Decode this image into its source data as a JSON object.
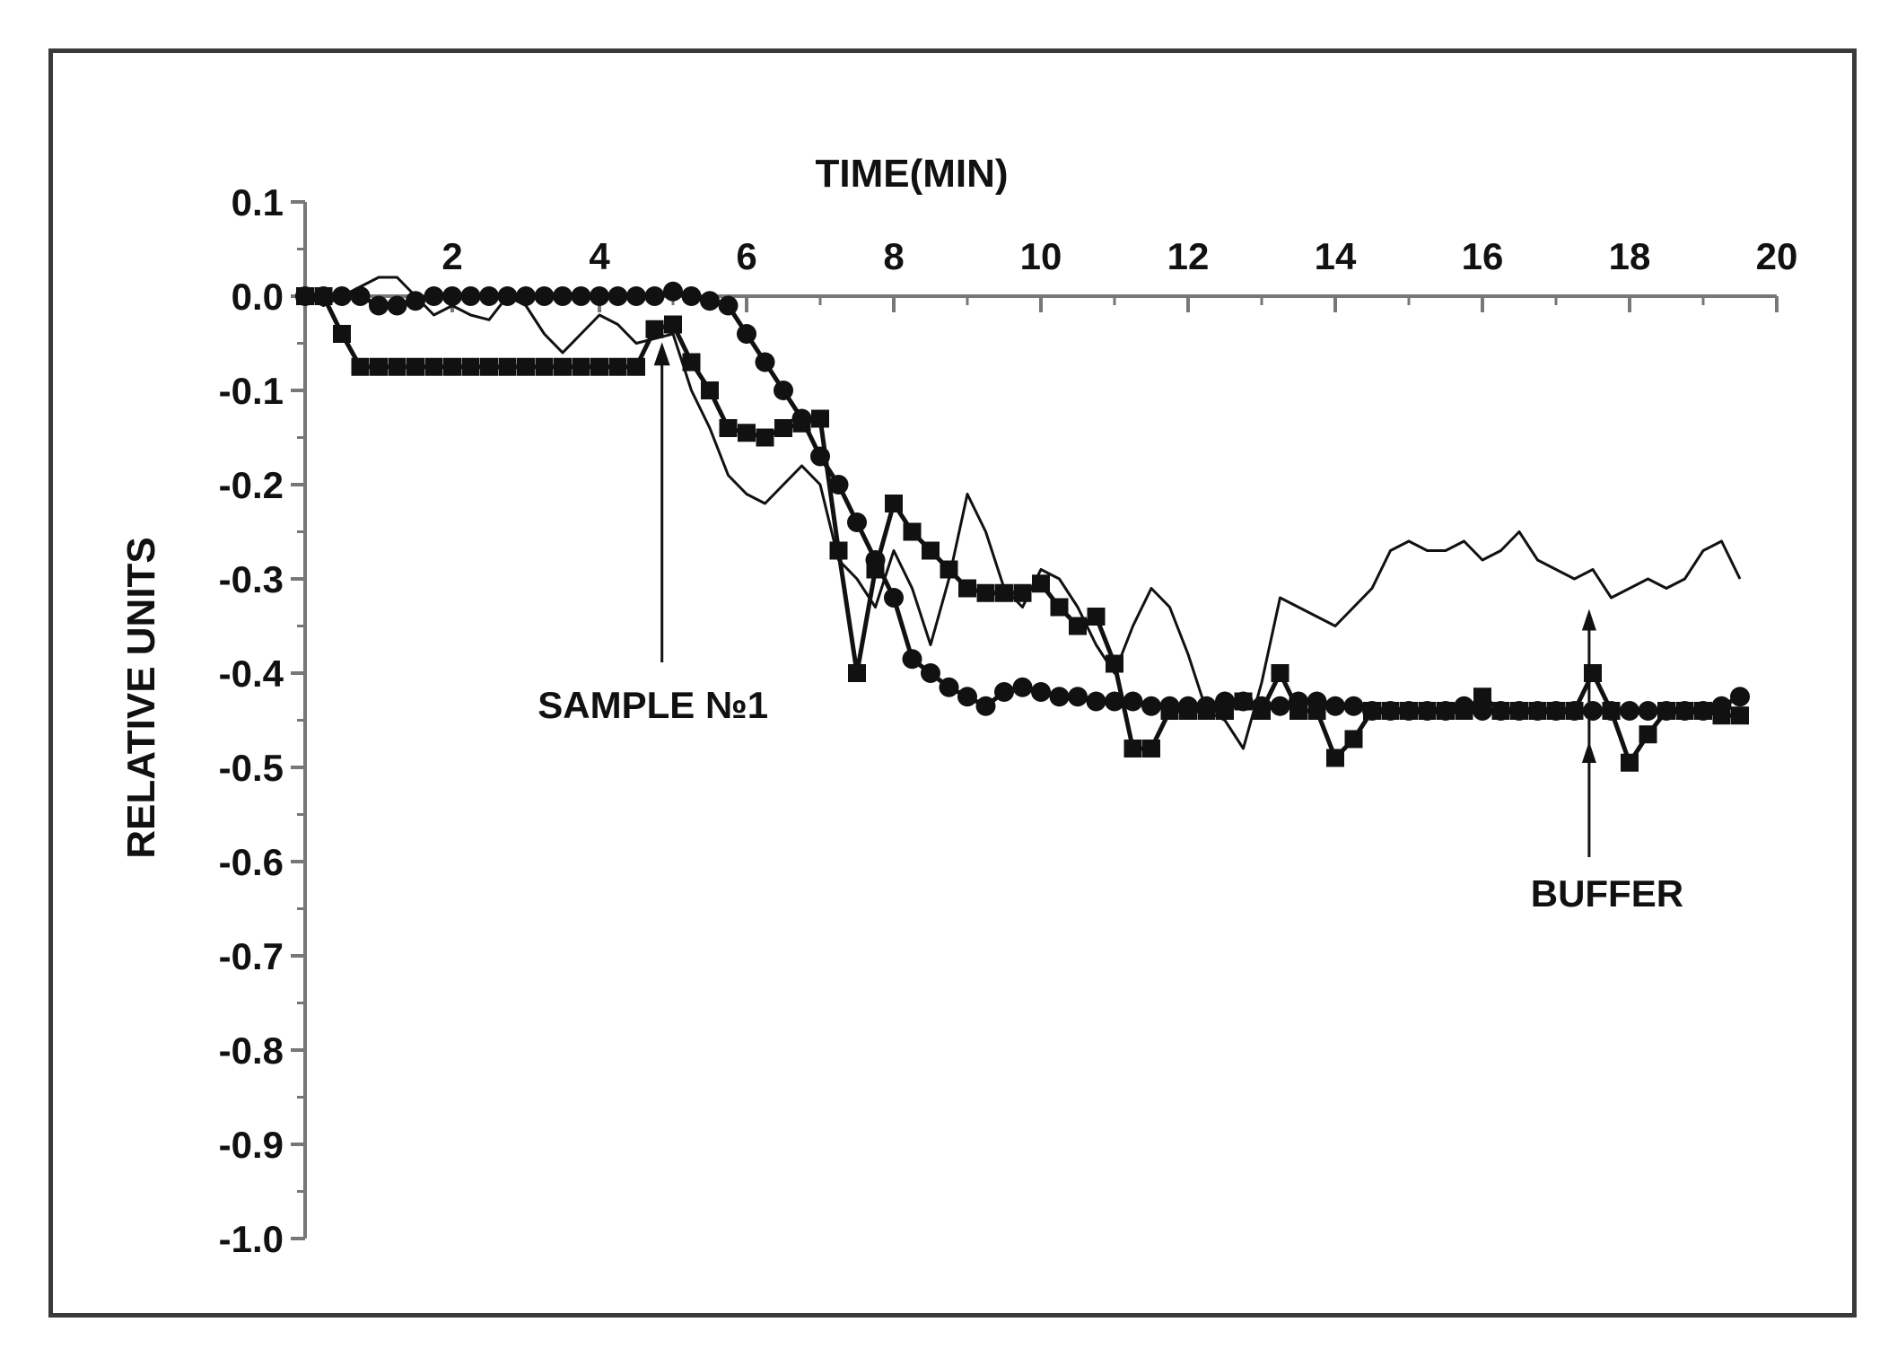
{
  "chart_data": {
    "type": "line",
    "xlabel": "TIME(MIN)",
    "ylabel": "RELATIVE UNITS",
    "xlim": [
      0,
      20
    ],
    "ylim": [
      -1.0,
      0.1
    ],
    "x_axis_position": "top",
    "x_ticks": [
      2,
      4,
      6,
      8,
      10,
      12,
      14,
      16,
      18,
      20
    ],
    "x_tick_labels": [
      "2",
      "4",
      "6",
      "8",
      "10",
      "12",
      "14",
      "16",
      "18",
      "20"
    ],
    "y_ticks": [
      0.1,
      0.0,
      -0.1,
      -0.2,
      -0.3,
      -0.4,
      -0.5,
      -0.6,
      -0.7,
      -0.8,
      -0.9,
      -1.0
    ],
    "y_tick_labels": [
      "0.1",
      "0.0",
      "-0.1",
      "-0.2",
      "-0.3",
      "-0.4",
      "-0.5",
      "-0.6",
      "-0.7",
      "-0.8",
      "-0.9",
      "-1.0"
    ],
    "grid": false,
    "legend": "none",
    "series": [
      {
        "marker": "circle",
        "x": [
          0,
          0.25,
          0.5,
          0.75,
          1,
          1.25,
          1.5,
          1.75,
          2,
          2.25,
          2.5,
          2.75,
          3,
          3.25,
          3.5,
          3.75,
          4,
          4.25,
          4.5,
          4.75,
          5,
          5.25,
          5.5,
          5.75,
          6,
          6.25,
          6.5,
          6.75,
          7,
          7.25,
          7.5,
          7.75,
          8,
          8.25,
          8.5,
          8.75,
          9,
          9.25,
          9.5,
          9.75,
          10,
          10.25,
          10.5,
          10.75,
          11,
          11.25,
          11.5,
          11.75,
          12,
          12.25,
          12.5,
          12.75,
          13,
          13.25,
          13.5,
          13.75,
          14,
          14.25,
          14.5,
          14.75,
          15,
          15.25,
          15.5,
          15.75,
          16,
          16.25,
          16.5,
          16.75,
          17,
          17.25,
          17.5,
          17.75,
          18,
          18.25,
          18.5,
          18.75,
          19,
          19.25,
          19.5
        ],
        "y": [
          0.0,
          0.0,
          0.0,
          0.0,
          -0.01,
          -0.01,
          -0.005,
          0.0,
          0.0,
          0.0,
          0.0,
          0.0,
          0.0,
          0.0,
          0.0,
          0.0,
          0.0,
          0.0,
          0.0,
          0.0,
          0.005,
          0.0,
          -0.005,
          -0.01,
          -0.04,
          -0.07,
          -0.1,
          -0.13,
          -0.17,
          -0.2,
          -0.24,
          -0.28,
          -0.32,
          -0.385,
          -0.4,
          -0.415,
          -0.425,
          -0.435,
          -0.42,
          -0.415,
          -0.42,
          -0.425,
          -0.425,
          -0.43,
          -0.43,
          -0.43,
          -0.435,
          -0.435,
          -0.435,
          -0.435,
          -0.43,
          -0.43,
          -0.435,
          -0.435,
          -0.43,
          -0.43,
          -0.435,
          -0.435,
          -0.44,
          -0.44,
          -0.44,
          -0.44,
          -0.44,
          -0.435,
          -0.44,
          -0.44,
          -0.44,
          -0.44,
          -0.44,
          -0.44,
          -0.44,
          -0.44,
          -0.44,
          -0.44,
          -0.44,
          -0.44,
          -0.44,
          -0.435,
          -0.425
        ]
      },
      {
        "marker": "square",
        "x": [
          0,
          0.25,
          0.5,
          0.75,
          1,
          1.25,
          1.5,
          1.75,
          2,
          2.25,
          2.5,
          2.75,
          3,
          3.25,
          3.5,
          3.75,
          4,
          4.25,
          4.5,
          4.75,
          5,
          5.25,
          5.5,
          5.75,
          6,
          6.25,
          6.5,
          6.75,
          7,
          7.25,
          7.5,
          7.75,
          8,
          8.25,
          8.5,
          8.75,
          9,
          9.25,
          9.5,
          9.75,
          10,
          10.25,
          10.5,
          10.75,
          11,
          11.25,
          11.5,
          11.75,
          12,
          12.25,
          12.5,
          12.75,
          13,
          13.25,
          13.5,
          13.75,
          14,
          14.25,
          14.5,
          14.75,
          15,
          15.25,
          15.5,
          15.75,
          16,
          16.25,
          16.5,
          16.75,
          17,
          17.25,
          17.5,
          17.75,
          18,
          18.25,
          18.5,
          18.75,
          19,
          19.25,
          19.5
        ],
        "y": [
          0.0,
          0.0,
          -0.04,
          -0.075,
          -0.075,
          -0.075,
          -0.075,
          -0.075,
          -0.075,
          -0.075,
          -0.075,
          -0.075,
          -0.075,
          -0.075,
          -0.075,
          -0.075,
          -0.075,
          -0.075,
          -0.075,
          -0.035,
          -0.03,
          -0.07,
          -0.1,
          -0.14,
          -0.145,
          -0.15,
          -0.14,
          -0.135,
          -0.13,
          -0.27,
          -0.4,
          -0.29,
          -0.22,
          -0.25,
          -0.27,
          -0.29,
          -0.31,
          -0.315,
          -0.315,
          -0.315,
          -0.305,
          -0.33,
          -0.35,
          -0.34,
          -0.39,
          -0.48,
          -0.48,
          -0.44,
          -0.44,
          -0.44,
          -0.44,
          -0.43,
          -0.44,
          -0.4,
          -0.44,
          -0.44,
          -0.49,
          -0.47,
          -0.44,
          -0.44,
          -0.44,
          -0.44,
          -0.44,
          -0.44,
          -0.425,
          -0.44,
          -0.44,
          -0.44,
          -0.44,
          -0.44,
          -0.4,
          -0.44,
          -0.495,
          -0.465,
          -0.44,
          -0.44,
          -0.44,
          -0.445,
          -0.445
        ]
      },
      {
        "marker": "none",
        "x": [
          0,
          0.25,
          0.5,
          0.75,
          1,
          1.25,
          1.5,
          1.75,
          2,
          2.25,
          2.5,
          2.75,
          3,
          3.25,
          3.5,
          3.75,
          4,
          4.25,
          4.5,
          4.75,
          5,
          5.25,
          5.5,
          5.75,
          6,
          6.25,
          6.5,
          6.75,
          7,
          7.25,
          7.5,
          7.75,
          8,
          8.25,
          8.5,
          8.75,
          9,
          9.25,
          9.5,
          9.75,
          10,
          10.25,
          10.5,
          10.75,
          11,
          11.25,
          11.5,
          11.75,
          12,
          12.25,
          12.5,
          12.75,
          13,
          13.25,
          13.5,
          13.75,
          14,
          14.25,
          14.5,
          14.75,
          15,
          15.25,
          15.5,
          15.75,
          16,
          16.25,
          16.5,
          16.75,
          17,
          17.25,
          17.5,
          17.75,
          18,
          18.25,
          18.5,
          18.75,
          19,
          19.25,
          19.5
        ],
        "y": [
          0.0,
          -0.01,
          0.0,
          0.01,
          0.02,
          0.02,
          0.0,
          -0.02,
          -0.01,
          -0.02,
          -0.025,
          0.0,
          -0.01,
          -0.04,
          -0.06,
          -0.04,
          -0.02,
          -0.03,
          -0.05,
          -0.045,
          -0.04,
          -0.1,
          -0.14,
          -0.19,
          -0.21,
          -0.22,
          -0.2,
          -0.18,
          -0.2,
          -0.28,
          -0.3,
          -0.33,
          -0.27,
          -0.31,
          -0.37,
          -0.3,
          -0.21,
          -0.25,
          -0.31,
          -0.33,
          -0.29,
          -0.3,
          -0.33,
          -0.37,
          -0.4,
          -0.35,
          -0.31,
          -0.33,
          -0.38,
          -0.44,
          -0.45,
          -0.48,
          -0.41,
          -0.32,
          -0.33,
          -0.34,
          -0.35,
          -0.33,
          -0.31,
          -0.27,
          -0.26,
          -0.27,
          -0.27,
          -0.26,
          -0.28,
          -0.27,
          -0.25,
          -0.28,
          -0.29,
          -0.3,
          -0.29,
          -0.32,
          -0.31,
          -0.3,
          -0.31,
          -0.3,
          -0.27,
          -0.26,
          -0.3
        ]
      }
    ],
    "annotations": [
      {
        "text": "SAMPLE №1",
        "arrow_to": [
          4.85,
          -0.045
        ]
      },
      {
        "text": "BUFFER",
        "arrow_to": [
          17.45,
          -0.33
        ]
      }
    ]
  }
}
